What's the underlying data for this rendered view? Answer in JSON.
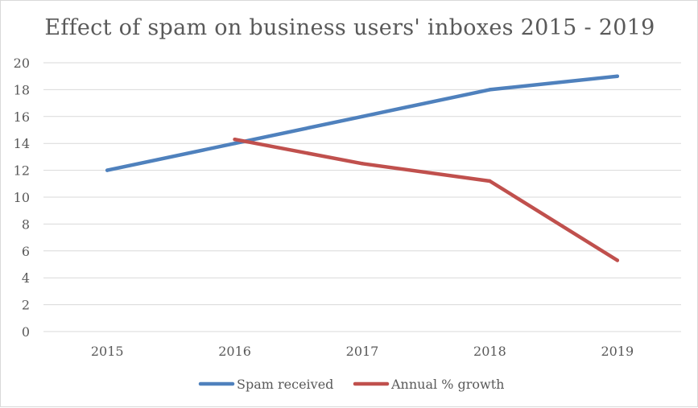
{
  "chart_data": {
    "type": "line",
    "title": "Effect of spam on business users' inboxes 2015 - 2019",
    "xlabel": "",
    "ylabel": "",
    "categories": [
      "2015",
      "2016",
      "2017",
      "2018",
      "2019"
    ],
    "ylim": [
      0,
      20
    ],
    "yticks": [
      0,
      2,
      4,
      6,
      8,
      10,
      12,
      14,
      16,
      18,
      20
    ],
    "grid": true,
    "legend_position": "bottom",
    "series": [
      {
        "name": "Spam received",
        "color": "#4f81bd",
        "values": [
          12,
          14,
          16,
          18,
          19
        ]
      },
      {
        "name": "Annual % growth",
        "color": "#c0504d",
        "values": [
          null,
          14.3,
          12.5,
          11.2,
          5.3
        ]
      }
    ]
  }
}
